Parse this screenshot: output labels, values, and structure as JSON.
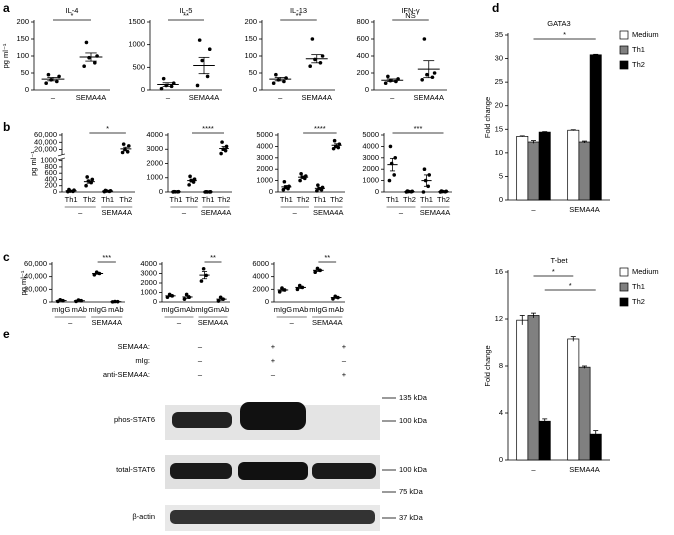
{
  "panel_labels": [
    "a",
    "b",
    "c",
    "d",
    "e"
  ],
  "chart_data": [
    {
      "type": "dot",
      "title": "IL-4",
      "ylabel": "pg ml⁻¹",
      "categories": [
        "–",
        "SEMA4A"
      ],
      "ylim": [
        0,
        200
      ],
      "yticks": [
        0,
        50,
        100,
        150,
        200
      ],
      "significance": "*",
      "groups": [
        {
          "points": [
            20,
            25,
            30,
            40,
            45
          ],
          "mean": 32,
          "sem": 5
        },
        {
          "points": [
            70,
            80,
            95,
            100,
            140
          ],
          "mean": 97,
          "sem": 12
        }
      ]
    },
    {
      "type": "dot",
      "title": "IL-5",
      "categories": [
        "–",
        "SEMA4A"
      ],
      "ylim": [
        0,
        1500
      ],
      "yticks": [
        0,
        500,
        1000,
        1500
      ],
      "significance": "**",
      "groups": [
        {
          "points": [
            30,
            80,
            100,
            150,
            250
          ],
          "mean": 120,
          "sem": 40
        },
        {
          "points": [
            100,
            300,
            650,
            900,
            1100
          ],
          "mean": 540,
          "sem": 180
        }
      ]
    },
    {
      "type": "dot",
      "title": "IL-13",
      "categories": [
        "–",
        "SEMA4A"
      ],
      "ylim": [
        0,
        200
      ],
      "yticks": [
        0,
        50,
        100,
        150,
        200
      ],
      "significance": "**",
      "groups": [
        {
          "points": [
            20,
            25,
            30,
            35,
            45
          ],
          "mean": 32,
          "sem": 5
        },
        {
          "points": [
            70,
            80,
            90,
            100,
            150
          ],
          "mean": 92,
          "sem": 12
        }
      ]
    },
    {
      "type": "dot",
      "title": "IFN-γ",
      "categories": [
        "–",
        "SEMA4A"
      ],
      "ylim": [
        0,
        800
      ],
      "yticks": [
        0,
        200,
        400,
        600,
        800
      ],
      "significance": "NS",
      "groups": [
        {
          "points": [
            80,
            100,
            110,
            130,
            160
          ],
          "mean": 115,
          "sem": 15
        },
        {
          "points": [
            120,
            150,
            180,
            200,
            600
          ],
          "mean": 245,
          "sem": 100
        }
      ]
    },
    {
      "type": "dot",
      "ylabel": "pg ml⁻¹",
      "categories": [
        "Th1",
        "Th2",
        "Th1",
        "Th2"
      ],
      "group_labels": [
        "–",
        "SEMA4A"
      ],
      "ylim": [
        0,
        60000
      ],
      "ybreak": [
        1000,
        10000
      ],
      "yticks": [
        0,
        200,
        400,
        600,
        800,
        1000,
        {
          "value": 20000,
          "label": "20,000"
        },
        {
          "value": 40000,
          "label": "40,000"
        },
        {
          "value": 60000,
          "label": "60,000"
        }
      ],
      "significance": "*",
      "groups": [
        {
          "points": [
            10,
            20,
            30,
            60,
            80
          ],
          "mean": 40,
          "sem": 12
        },
        {
          "points": [
            200,
            300,
            350,
            400,
            480
          ],
          "mean": 330,
          "sem": 50
        },
        {
          "points": [
            10,
            20,
            30,
            40,
            50
          ],
          "mean": 30,
          "sem": 7
        },
        {
          "points": [
            12000,
            14000,
            20000,
            30000,
            35000
          ],
          "mean": 22000,
          "sem": 4500
        }
      ]
    },
    {
      "type": "dot",
      "categories": [
        "Th1",
        "Th2",
        "Th1",
        "Th2"
      ],
      "group_labels": [
        "–",
        "SEMA4A"
      ],
      "ylim": [
        0,
        4000
      ],
      "yticks": [
        0,
        1000,
        2000,
        3000,
        4000
      ],
      "significance": "****",
      "groups": [
        {
          "points": [
            5,
            10,
            15,
            20,
            25
          ],
          "mean": 15,
          "sem": 4
        },
        {
          "points": [
            500,
            700,
            800,
            900,
            1100
          ],
          "mean": 800,
          "sem": 100
        },
        {
          "points": [
            0,
            5,
            5,
            10,
            10
          ],
          "mean": 6,
          "sem": 2
        },
        {
          "points": [
            2700,
            2900,
            3000,
            3200,
            3500
          ],
          "mean": 3050,
          "sem": 140
        }
      ]
    },
    {
      "type": "dot",
      "categories": [
        "Th1",
        "Th2",
        "Th1",
        "Th2"
      ],
      "group_labels": [
        "–",
        "SEMA4A"
      ],
      "ylim": [
        0,
        5000
      ],
      "yticks": [
        0,
        1000,
        2000,
        3000,
        4000,
        5000
      ],
      "significance": "****",
      "groups": [
        {
          "points": [
            200,
            300,
            400,
            500,
            900
          ],
          "mean": 450,
          "sem": 120
        },
        {
          "points": [
            1000,
            1200,
            1300,
            1400,
            1600
          ],
          "mean": 1300,
          "sem": 100
        },
        {
          "points": [
            100,
            200,
            300,
            400,
            600
          ],
          "mean": 320,
          "sem": 80
        },
        {
          "points": [
            3800,
            3900,
            4000,
            4200,
            4500
          ],
          "mean": 4100,
          "sem": 130
        }
      ]
    },
    {
      "type": "dot",
      "categories": [
        "Th1",
        "Th2",
        "Th1",
        "Th2"
      ],
      "group_labels": [
        "–",
        "SEMA4A"
      ],
      "ylim": [
        0,
        5000
      ],
      "yticks": [
        0,
        1000,
        2000,
        3000,
        4000,
        5000
      ],
      "significance": "***",
      "groups": [
        {
          "points": [
            1000,
            1500,
            2500,
            3000,
            4000
          ],
          "mean": 2400,
          "sem": 550
        },
        {
          "points": [
            0,
            20,
            40,
            60,
            80
          ],
          "mean": 40,
          "sem": 15
        },
        {
          "points": [
            0,
            500,
            1000,
            1500,
            2000
          ],
          "mean": 1000,
          "sem": 500
        },
        {
          "points": [
            0,
            20,
            40,
            60,
            80
          ],
          "mean": 40,
          "sem": 15
        }
      ]
    },
    {
      "type": "dot",
      "ylabel": "pg ml⁻¹",
      "categories": [
        "mIgG",
        "mAb",
        "mIgG",
        "mAb"
      ],
      "group_labels": [
        "–",
        "SEMA4A"
      ],
      "ylim": [
        0,
        60000
      ],
      "yticks": [
        0,
        {
          "value": 20000,
          "label": "20,000"
        },
        {
          "value": 40000,
          "label": "40,000"
        },
        {
          "value": 60000,
          "label": "60,000"
        }
      ],
      "significance": "***",
      "groups": [
        {
          "points": [
            1000,
            2000,
            3500
          ],
          "mean": 2200,
          "sem": 700
        },
        {
          "points": [
            1000,
            2000,
            3000
          ],
          "mean": 2000,
          "sem": 600
        },
        {
          "points": [
            43000,
            45000,
            47000
          ],
          "mean": 45000,
          "sem": 1200
        },
        {
          "points": [
            200,
            500,
            800
          ],
          "mean": 500,
          "sem": 170
        }
      ]
    },
    {
      "type": "dot",
      "categories": [
        "mIgG",
        "mAb",
        "mIgG",
        "mAb"
      ],
      "group_labels": [
        "–",
        "SEMA4A"
      ],
      "ylim": [
        0,
        4000
      ],
      "yticks": [
        0,
        1000,
        2000,
        3000,
        4000
      ],
      "significance": "**",
      "groups": [
        {
          "points": [
            500,
            650,
            800
          ],
          "mean": 650,
          "sem": 90
        },
        {
          "points": [
            300,
            500,
            800
          ],
          "mean": 530,
          "sem": 150
        },
        {
          "points": [
            2200,
            2800,
            3500
          ],
          "mean": 2830,
          "sem": 380
        },
        {
          "points": [
            100,
            300,
            500
          ],
          "mean": 300,
          "sem": 120
        }
      ]
    },
    {
      "type": "dot",
      "categories": [
        "mIgG",
        "mAb",
        "mIgG",
        "mAb"
      ],
      "group_labels": [
        "–",
        "SEMA4A"
      ],
      "ylim": [
        0,
        6000
      ],
      "yticks": [
        0,
        2000,
        4000,
        6000
      ],
      "significance": "**",
      "groups": [
        {
          "points": [
            1600,
            1900,
            2200
          ],
          "mean": 1900,
          "sem": 170
        },
        {
          "points": [
            2000,
            2300,
            2600
          ],
          "mean": 2300,
          "sem": 170
        },
        {
          "points": [
            4700,
            5000,
            5300
          ],
          "mean": 5000,
          "sem": 170
        },
        {
          "points": [
            500,
            700,
            900
          ],
          "mean": 700,
          "sem": 120
        }
      ]
    },
    {
      "type": "bar",
      "title": "GATA3",
      "ylabel": "Fold change",
      "categories": [
        "–",
        "SEMA4A"
      ],
      "ylim": [
        0,
        35
      ],
      "yticks": [
        0,
        5,
        10,
        15,
        20,
        25,
        30,
        35
      ],
      "legend": "upper right",
      "significance": [
        "*"
      ],
      "series": [
        {
          "name": "Medium",
          "color": "#ffffff",
          "values": [
            13.5,
            14.8
          ],
          "errors": [
            0.1,
            0.1
          ]
        },
        {
          "name": "Th1",
          "color": "#808080",
          "values": [
            12.3,
            12.3
          ],
          "errors": [
            0.3,
            0.2
          ]
        },
        {
          "name": "Th2",
          "color": "#000000",
          "values": [
            14.4,
            30.8
          ],
          "errors": [
            0.1,
            0.1
          ]
        }
      ]
    },
    {
      "type": "bar",
      "title": "T-bet",
      "ylabel": "Fold change",
      "categories": [
        "–",
        "SEMA4A"
      ],
      "ylim": [
        0,
        16
      ],
      "yticks": [
        0,
        4,
        8,
        12,
        16
      ],
      "legend": "upper right",
      "significance": [
        "*",
        "*"
      ],
      "series": [
        {
          "name": "Medium",
          "color": "#ffffff",
          "values": [
            11.9,
            10.3
          ],
          "errors": [
            0.4,
            0.2
          ]
        },
        {
          "name": "Th1",
          "color": "#808080",
          "values": [
            12.3,
            7.9
          ],
          "errors": [
            0.2,
            0.1
          ]
        },
        {
          "name": "Th2",
          "color": "#000000",
          "values": [
            3.3,
            2.2
          ],
          "errors": [
            0.2,
            0.3
          ]
        }
      ]
    }
  ],
  "blot": {
    "conditions": [
      {
        "label": "SEMA4A:",
        "marks": [
          "–",
          "+",
          "+"
        ]
      },
      {
        "label": "mIg:",
        "marks": [
          "–",
          "+",
          "–"
        ]
      },
      {
        "label": "anti-SEMA4A:",
        "marks": [
          "–",
          "–",
          "+"
        ]
      }
    ],
    "bands": [
      "phos-STAT6",
      "total-STAT6",
      "β-actin"
    ],
    "markers": [
      "135 kDa",
      "100 kDa",
      "100 kDa",
      "75 kDa",
      "37 kDa"
    ]
  }
}
